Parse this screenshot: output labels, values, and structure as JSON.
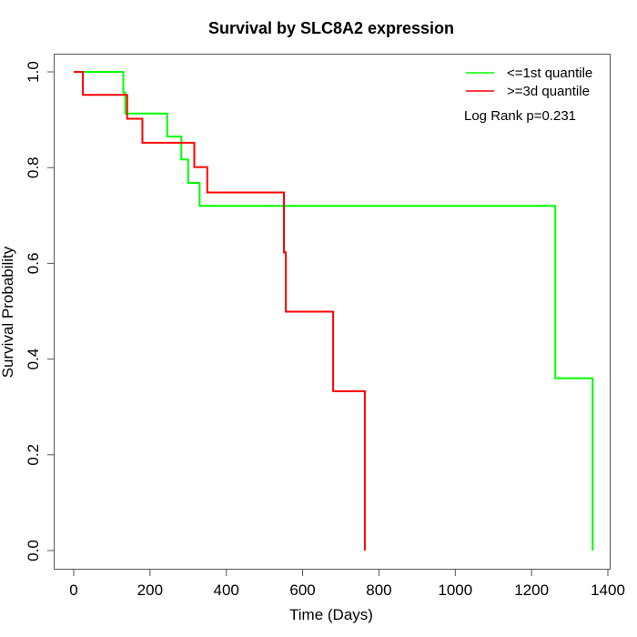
{
  "chart_data": {
    "type": "line",
    "subtype": "kaplan-meier-step",
    "title": "Survival by SLC8A2 expression",
    "xlabel": "Time (Days)",
    "ylabel": "Survival Probability",
    "xlim": [
      0,
      1400
    ],
    "ylim": [
      0,
      1
    ],
    "x_ticks": [
      0,
      200,
      400,
      600,
      800,
      1000,
      1200,
      1400
    ],
    "x_tick_labels": [
      "0",
      "200",
      "400",
      "600",
      "800",
      "1000",
      "1200",
      "1400"
    ],
    "y_ticks": [
      0.0,
      0.2,
      0.4,
      0.6,
      0.8,
      1.0
    ],
    "y_tick_labels": [
      "0.0",
      "0.2",
      "0.4",
      "0.6",
      "0.8",
      "1.0"
    ],
    "grid": false,
    "legend_position": "top-right",
    "annotation": "Log Rank p=0.231",
    "series": [
      {
        "name": "<=1st quantile",
        "color": "#00ff00",
        "steps": [
          {
            "t": 0,
            "s": 1.0
          },
          {
            "t": 130,
            "s": 0.957
          },
          {
            "t": 135,
            "s": 0.913
          },
          {
            "t": 245,
            "s": 0.865
          },
          {
            "t": 282,
            "s": 0.817
          },
          {
            "t": 300,
            "s": 0.768
          },
          {
            "t": 330,
            "s": 0.72
          },
          {
            "t": 1262,
            "s": 0.36
          },
          {
            "t": 1360,
            "s": 0.0
          }
        ]
      },
      {
        "name": ">=3d quantile",
        "color": "#ff0000",
        "steps": [
          {
            "t": 0,
            "s": 1.0
          },
          {
            "t": 24,
            "s": 0.952
          },
          {
            "t": 140,
            "s": 0.902
          },
          {
            "t": 180,
            "s": 0.852
          },
          {
            "t": 316,
            "s": 0.801
          },
          {
            "t": 350,
            "s": 0.748
          },
          {
            "t": 551,
            "s": 0.623
          },
          {
            "t": 556,
            "s": 0.499
          },
          {
            "t": 680,
            "s": 0.333
          },
          {
            "t": 763,
            "s": 0.0
          }
        ]
      }
    ]
  }
}
